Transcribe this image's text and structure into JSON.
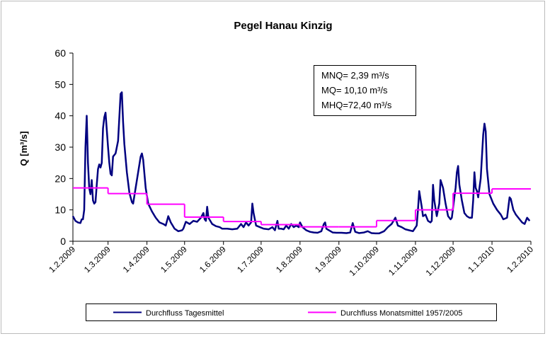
{
  "chart_data": {
    "type": "line",
    "title": "Pegel Hanau Kinzig",
    "y_label": "Q [m³/s]",
    "annotations": [
      "MNQ= 2,39 m³/s",
      "MQ= 10,10 m³/s",
      "MHQ=72,40 m³/s"
    ],
    "legend": "bottom",
    "grid": false,
    "ylim": [
      0,
      60
    ],
    "yticks": [
      0,
      10,
      20,
      30,
      40,
      50,
      60
    ],
    "xlim": [
      "2009-02-01",
      "2010-02-01"
    ],
    "xticks": [
      {
        "value": "2009-02-01",
        "label": "1.2.2009"
      },
      {
        "value": "2009-03-01",
        "label": "1.3.2009"
      },
      {
        "value": "2009-04-01",
        "label": "1.4.2009"
      },
      {
        "value": "2009-05-01",
        "label": "1.5.2009"
      },
      {
        "value": "2009-06-01",
        "label": "1.6.2009"
      },
      {
        "value": "2009-07-01",
        "label": "1.7.2009"
      },
      {
        "value": "2009-08-01",
        "label": "1.8.2009"
      },
      {
        "value": "2009-09-01",
        "label": "1.9.2009"
      },
      {
        "value": "2009-10-01",
        "label": "1.10.2009"
      },
      {
        "value": "2009-11-01",
        "label": "1.11.2009"
      },
      {
        "value": "2009-12-01",
        "label": "1.12.2009"
      },
      {
        "value": "2010-01-01",
        "label": "1.1.2010"
      },
      {
        "value": "2010-02-01",
        "label": "1.2.2010"
      }
    ],
    "series": [
      {
        "name": "Durchfluss Tagesmittel",
        "color": "#000080",
        "x": [
          "2009-02-01",
          "2009-02-03",
          "2009-02-05",
          "2009-02-07",
          "2009-02-08",
          "2009-02-09",
          "2009-02-10",
          "2009-02-11",
          "2009-02-12",
          "2009-02-13",
          "2009-02-14",
          "2009-02-15",
          "2009-02-16",
          "2009-02-17",
          "2009-02-18",
          "2009-02-19",
          "2009-02-20",
          "2009-02-21",
          "2009-02-22",
          "2009-02-23",
          "2009-02-24",
          "2009-02-25",
          "2009-02-26",
          "2009-02-27",
          "2009-03-01",
          "2009-03-02",
          "2009-03-03",
          "2009-03-04",
          "2009-03-05",
          "2009-03-07",
          "2009-03-09",
          "2009-03-11",
          "2009-03-12",
          "2009-03-13",
          "2009-03-14",
          "2009-03-16",
          "2009-03-18",
          "2009-03-20",
          "2009-03-21",
          "2009-03-23",
          "2009-03-25",
          "2009-03-27",
          "2009-03-28",
          "2009-03-29",
          "2009-03-31",
          "2009-04-02",
          "2009-04-05",
          "2009-04-08",
          "2009-04-11",
          "2009-04-14",
          "2009-04-16",
          "2009-04-18",
          "2009-04-20",
          "2009-04-23",
          "2009-04-26",
          "2009-04-29",
          "2009-04-30",
          "2009-05-02",
          "2009-05-05",
          "2009-05-08",
          "2009-05-11",
          "2009-05-14",
          "2009-05-16",
          "2009-05-17",
          "2009-05-18",
          "2009-05-19",
          "2009-05-20",
          "2009-05-23",
          "2009-05-26",
          "2009-05-29",
          "2009-05-31",
          "2009-06-04",
          "2009-06-08",
          "2009-06-12",
          "2009-06-15",
          "2009-06-17",
          "2009-06-19",
          "2009-06-21",
          "2009-06-23",
          "2009-06-24",
          "2009-06-25",
          "2009-06-27",
          "2009-06-30",
          "2009-07-03",
          "2009-07-07",
          "2009-07-10",
          "2009-07-12",
          "2009-07-14",
          "2009-07-15",
          "2009-07-17",
          "2009-07-19",
          "2009-07-21",
          "2009-07-23",
          "2009-07-25",
          "2009-07-27",
          "2009-07-29",
          "2009-07-31",
          "2009-08-01",
          "2009-08-03",
          "2009-08-06",
          "2009-08-09",
          "2009-08-12",
          "2009-08-15",
          "2009-08-18",
          "2009-08-20",
          "2009-08-21",
          "2009-08-22",
          "2009-08-24",
          "2009-08-27",
          "2009-08-30",
          "2009-09-03",
          "2009-09-07",
          "2009-09-10",
          "2009-09-12",
          "2009-09-14",
          "2009-09-17",
          "2009-09-21",
          "2009-09-24",
          "2009-09-27",
          "2009-09-30",
          "2009-10-03",
          "2009-10-07",
          "2009-10-10",
          "2009-10-13",
          "2009-10-16",
          "2009-10-18",
          "2009-10-21",
          "2009-10-24",
          "2009-10-27",
          "2009-10-30",
          "2009-11-02",
          "2009-11-03",
          "2009-11-04",
          "2009-11-06",
          "2009-11-07",
          "2009-11-09",
          "2009-11-11",
          "2009-11-13",
          "2009-11-14",
          "2009-11-15",
          "2009-11-16",
          "2009-11-18",
          "2009-11-20",
          "2009-11-21",
          "2009-11-23",
          "2009-11-25",
          "2009-11-27",
          "2009-11-29",
          "2009-11-30",
          "2009-12-02",
          "2009-12-03",
          "2009-12-04",
          "2009-12-05",
          "2009-12-06",
          "2009-12-08",
          "2009-12-10",
          "2009-12-12",
          "2009-12-14",
          "2009-12-16",
          "2009-12-17",
          "2009-12-18",
          "2009-12-19",
          "2009-12-20",
          "2009-12-21",
          "2009-12-23",
          "2009-12-25",
          "2009-12-26",
          "2009-12-27",
          "2009-12-28",
          "2009-12-30",
          "2010-01-02",
          "2010-01-05",
          "2010-01-08",
          "2010-01-10",
          "2010-01-13",
          "2010-01-15",
          "2010-01-16",
          "2010-01-18",
          "2010-01-20",
          "2010-01-22",
          "2010-01-25",
          "2010-01-27",
          "2010-01-29",
          "2010-01-31"
        ],
        "values": [
          8,
          6.5,
          6,
          5.8,
          7,
          7,
          10,
          30,
          40,
          25,
          17,
          15,
          19.5,
          13,
          12,
          12.5,
          18,
          23,
          24.5,
          23.5,
          25,
          36,
          39.5,
          41,
          30,
          25,
          21.5,
          21,
          27,
          28,
          32,
          47,
          47.5,
          38,
          31,
          22,
          15.5,
          12.5,
          12,
          17,
          22,
          27,
          28,
          26,
          17,
          12,
          9.5,
          7.5,
          6,
          5.5,
          5,
          8,
          6,
          4,
          3.2,
          3.5,
          4,
          6.2,
          5.5,
          6.5,
          6.2,
          7.5,
          9,
          7,
          6.5,
          11,
          7.5,
          5.5,
          4.8,
          4.5,
          4,
          4,
          3.8,
          4,
          5.5,
          4.5,
          6,
          5,
          6,
          12,
          9,
          5,
          4.5,
          4,
          3.8,
          4.5,
          3.5,
          6.5,
          4,
          4,
          3.8,
          5,
          4,
          5.5,
          4.5,
          5,
          4.5,
          6,
          4.5,
          3.5,
          3,
          2.8,
          2.7,
          3.2,
          5.5,
          6,
          4,
          3.5,
          2.8,
          2.7,
          2.7,
          2.6,
          2.8,
          5.8,
          3,
          2.6,
          2.8,
          3.2,
          2.6,
          2.5,
          2.5,
          3.2,
          4.5,
          5.5,
          7.5,
          5,
          4.5,
          3.8,
          3.5,
          3.2,
          5,
          10,
          16,
          11,
          8,
          8.5,
          6.5,
          6,
          6.5,
          18,
          13,
          8,
          12,
          19.5,
          17,
          12,
          8,
          7,
          7.5,
          14,
          17,
          22,
          24,
          18,
          13,
          9,
          8,
          7.5,
          7.5,
          13,
          22,
          17,
          16,
          14,
          20,
          34,
          37.5,
          35,
          23,
          15,
          12,
          10,
          8.5,
          7,
          7.5,
          14,
          13.5,
          10,
          8.5,
          7.5,
          6,
          5.5,
          7.5,
          6.5
        ]
      },
      {
        "name": "Durchfluss Monatsmittel 1957/2005",
        "color": "#ff00ff",
        "step": true,
        "x": [
          "2009-02-01",
          "2009-03-01",
          "2009-04-01",
          "2009-05-01",
          "2009-06-01",
          "2009-07-01",
          "2009-08-01",
          "2009-09-01",
          "2009-10-01",
          "2009-11-01",
          "2009-12-01",
          "2010-01-01"
        ],
        "values": [
          17,
          15.2,
          11.8,
          7.7,
          6.3,
          5.3,
          4.6,
          4.6,
          6.6,
          10,
          15.3,
          16.7
        ]
      }
    ]
  }
}
